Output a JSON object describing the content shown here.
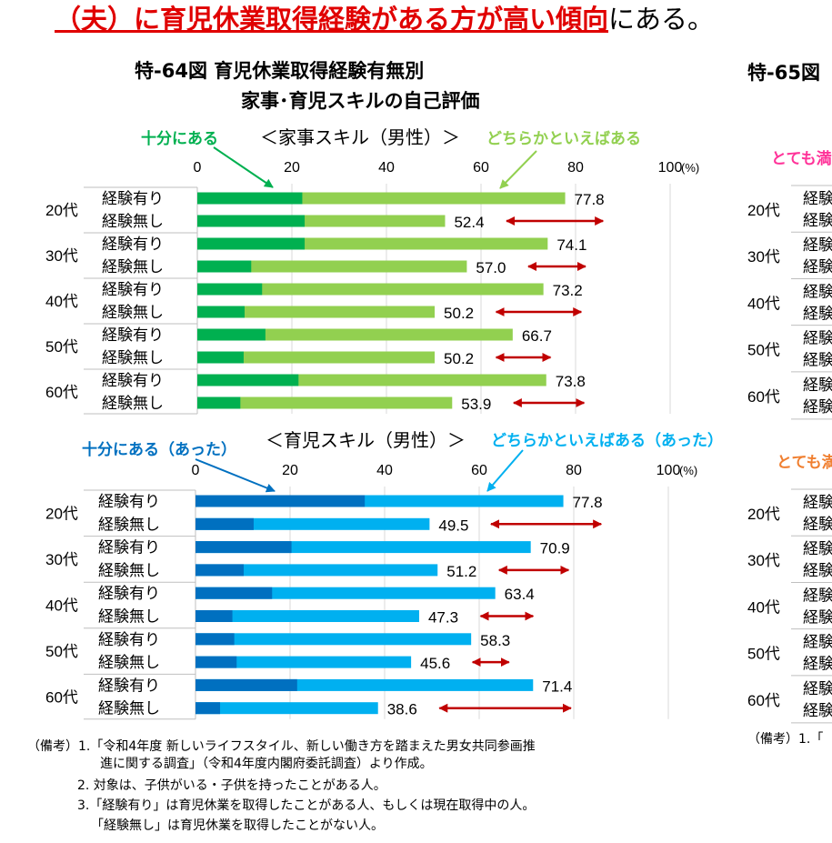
{
  "headline": {
    "highlight": "（夫）に育児休業取得経験がある方が高い傾向",
    "rest": "にある。"
  },
  "fig64": {
    "title_line1": "特-64図 育児休業取得経験有無別",
    "title_line2": "家事･育児スキルの自己評価"
  },
  "fig65": {
    "title": "特-65図",
    "legend_top": "とても満",
    "legend_bottom": "とても満",
    "row_labels": [
      "20代",
      "30代",
      "40代",
      "50代",
      "60代"
    ],
    "sub_labels": [
      "経験有り",
      "経験無し"
    ]
  },
  "colors": {
    "housework_dark": "#00b050",
    "housework_light": "#92d050",
    "childcare_dark": "#0070c0",
    "childcare_light": "#00b0f0",
    "gap_arrow": "#c00000",
    "headline": "#e00000",
    "fig65_pink": "#ff3399",
    "fig65_orange": "#f07f30"
  },
  "chart_data": [
    {
      "type": "bar",
      "orientation": "horizontal-stacked",
      "subtitle": "＜家事スキル（男性）＞",
      "legend": [
        "十分にある",
        "どちらかといえばある"
      ],
      "xlim": [
        0,
        100
      ],
      "xticks": [
        "0",
        "20",
        "40",
        "60",
        "80",
        "100"
      ],
      "xunit": "(%)",
      "grid": true,
      "groups": [
        "20代",
        "30代",
        "40代",
        "50代",
        "60代"
      ],
      "categories": [
        "経験有り",
        "経験無し"
      ],
      "series": [
        {
          "name": "十分にある",
          "values": [
            [
              22.2,
              22.7
            ],
            [
              22.7,
              11.4
            ],
            [
              13.7,
              10.0
            ],
            [
              14.4,
              9.8
            ],
            [
              21.4,
              9.1
            ]
          ]
        }
      ],
      "totals": [
        [
          77.8,
          52.4
        ],
        [
          74.1,
          57.0
        ],
        [
          73.2,
          50.2
        ],
        [
          66.7,
          50.2
        ],
        [
          73.8,
          53.9
        ]
      ],
      "total_labels": [
        [
          "77.8",
          "52.4"
        ],
        [
          "74.1",
          "57.0"
        ],
        [
          "73.2",
          "50.2"
        ],
        [
          "66.7",
          "50.2"
        ],
        [
          "73.8",
          "53.9"
        ]
      ],
      "gap_arrows": true
    },
    {
      "type": "bar",
      "orientation": "horizontal-stacked",
      "subtitle": "＜育児スキル（男性）＞",
      "legend": [
        "十分にある（あった）",
        "どちらかといえばある（あった）"
      ],
      "xlim": [
        0,
        100
      ],
      "xticks": [
        "0",
        "20",
        "40",
        "60",
        "80",
        "100"
      ],
      "xunit": "(%)",
      "grid": true,
      "groups": [
        "20代",
        "30代",
        "40代",
        "50代",
        "60代"
      ],
      "categories": [
        "経験有り",
        "経験無し"
      ],
      "series": [
        {
          "name": "十分にある（あった）",
          "values": [
            [
              35.8,
              12.3
            ],
            [
              20.3,
              10.2
            ],
            [
              16.2,
              7.8
            ],
            [
              8.2,
              8.7
            ],
            [
              21.5,
              5.2
            ]
          ]
        }
      ],
      "totals": [
        [
          77.8,
          49.5
        ],
        [
          70.9,
          51.2
        ],
        [
          63.4,
          47.3
        ],
        [
          58.3,
          45.6
        ],
        [
          71.4,
          38.6
        ]
      ],
      "total_labels": [
        [
          "77.8",
          "49.5"
        ],
        [
          "70.9",
          "51.2"
        ],
        [
          "63.4",
          "47.3"
        ],
        [
          "58.3",
          "45.6"
        ],
        [
          "71.4",
          "38.6"
        ]
      ],
      "gap_arrows": true
    }
  ],
  "notes": {
    "line1": "（備考）1.「令和4年度 新しいライフスタイル、新しい働き方を踏まえた男女共同参画推",
    "line2": "進に関する調査」（令和4年度内閣府委託調査）より作成。",
    "line3": "2. 対象は、子供がいる・子供を持ったことがある人。",
    "line4": "3.「経験有り」は育児休業を取得したことがある人、もしくは現在取得中の人。",
    "line5": "「経験無し」は育児休業を取得したことがない人。",
    "right_prefix": "（備考）1.「"
  }
}
